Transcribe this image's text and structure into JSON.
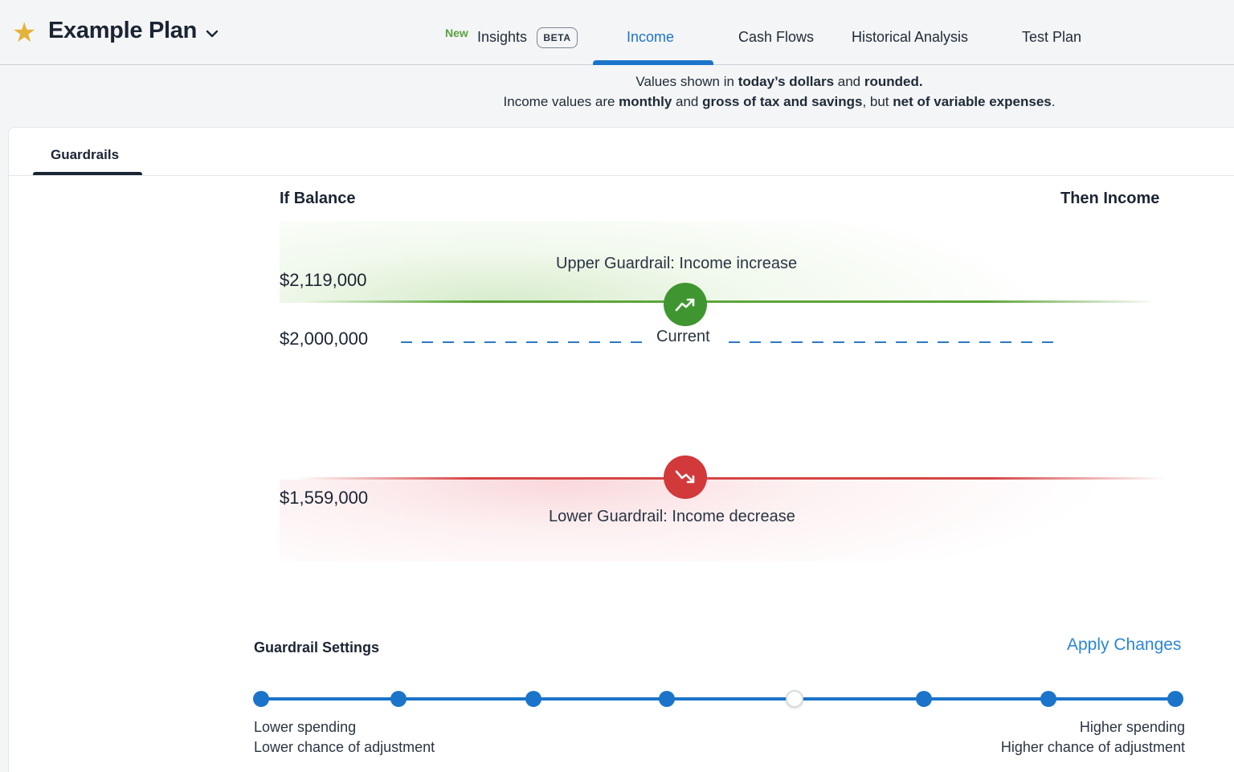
{
  "header": {
    "plan_name": "Example Plan",
    "nav": {
      "new_badge": "New",
      "insights": "Insights",
      "beta_badge": "BETA",
      "income": "Income",
      "cash_flows": "Cash Flows",
      "historical_analysis": "Historical Analysis",
      "test_plan": "Test Plan",
      "active_tab": "Income"
    }
  },
  "info": {
    "line1": [
      "Values shown in ",
      "today’s dollars",
      " and ",
      "rounded."
    ],
    "line2": [
      "Income values are ",
      "monthly",
      " and ",
      "gross of tax and savings",
      ", but ",
      "net of variable expenses",
      "."
    ]
  },
  "guardrails": {
    "tab_label": "Guardrails",
    "col_if_balance": "If Balance",
    "col_then_income": "Then Income",
    "upper": {
      "amount": "$2,119,000",
      "label": "Upper Guardrail: Income increase"
    },
    "current": {
      "amount": "$2,000,000",
      "label": "Current"
    },
    "lower": {
      "amount": "$1,559,000",
      "label": "Lower Guardrail: Income decrease"
    }
  },
  "settings": {
    "title": "Guardrail Settings",
    "apply_label": "Apply Changes",
    "stop_count": 8,
    "selected_stop": 4,
    "left_line1": "Lower spending",
    "left_line2": "Lower chance of adjustment",
    "right_line1": "Higher spending",
    "right_line2": "Higher chance of adjustment"
  },
  "colors": {
    "accent": "#1b74c9",
    "upper_green": "#3f9630",
    "lower_red": "#d1393b",
    "star": "#e4b33a"
  }
}
